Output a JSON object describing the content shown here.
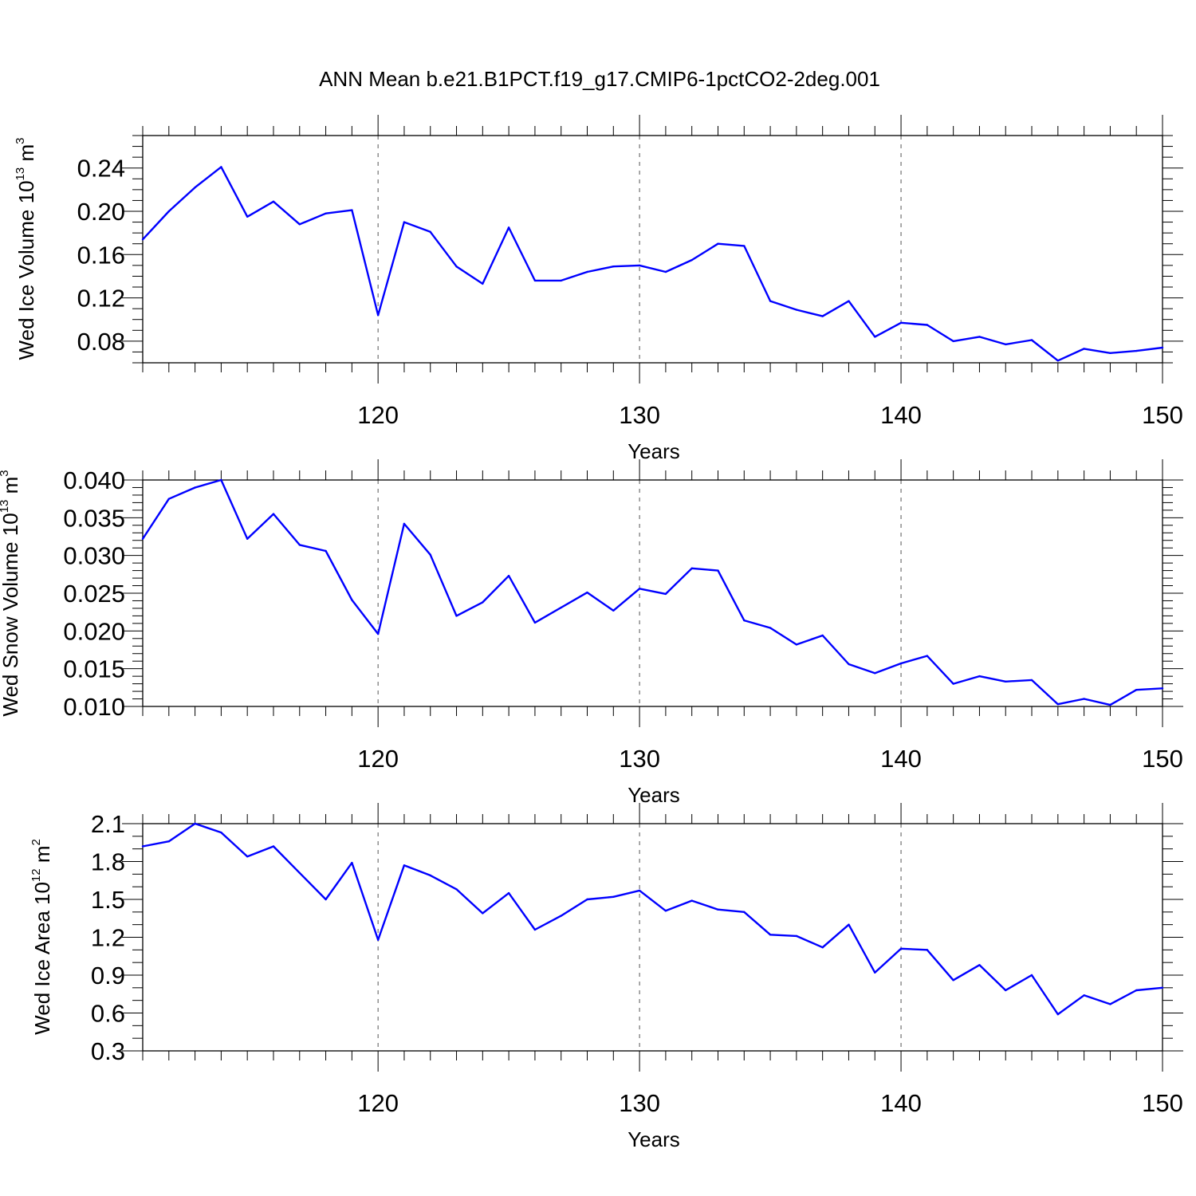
{
  "title": "ANN Mean b.e21.B1PCT.f19_g17.CMIP6-1pctCO2-2deg.001",
  "colors": {
    "series": "#0000ff",
    "axis": "#000000",
    "grid": "#555555"
  },
  "chart_data": [
    {
      "type": "line",
      "xlabel": "Years",
      "ylabel_main": "Wed Ice Volume 10",
      "ylabel_exp": "13",
      "ylabel_unit": " m",
      "ylabel_unit_exp": "3",
      "xlim": [
        111,
        150
      ],
      "ylim": [
        0.06,
        0.27
      ],
      "xticks": [
        120,
        130,
        140,
        150
      ],
      "xtick_labels": [
        "120",
        "130",
        "140",
        "150"
      ],
      "yticks": [
        0.08,
        0.12,
        0.16,
        0.2,
        0.24
      ],
      "ytick_labels": [
        "0.08",
        "0.12",
        "0.16",
        "0.20",
        "0.24"
      ],
      "ytick_minor_step": 0.01,
      "grid": "dashed vertical at major x ticks",
      "x": [
        111,
        112,
        113,
        114,
        115,
        116,
        117,
        118,
        119,
        120,
        121,
        122,
        123,
        124,
        125,
        126,
        127,
        128,
        129,
        130,
        131,
        132,
        133,
        134,
        135,
        136,
        137,
        138,
        139,
        140,
        141,
        142,
        143,
        144,
        145,
        146,
        147,
        148,
        149,
        150
      ],
      "values": [
        0.174,
        0.2,
        0.222,
        0.241,
        0.195,
        0.209,
        0.188,
        0.198,
        0.201,
        0.104,
        0.19,
        0.181,
        0.149,
        0.133,
        0.185,
        0.136,
        0.136,
        0.144,
        0.149,
        0.15,
        0.144,
        0.155,
        0.17,
        0.168,
        0.117,
        0.109,
        0.103,
        0.117,
        0.084,
        0.097,
        0.095,
        0.08,
        0.084,
        0.077,
        0.081,
        0.062,
        0.073,
        0.069,
        0.071,
        0.074
      ]
    },
    {
      "type": "line",
      "xlabel": "Years",
      "ylabel_main": "Wed Snow Volume 10",
      "ylabel_exp": "13",
      "ylabel_unit": " m",
      "ylabel_unit_exp": "3",
      "xlim": [
        111,
        150
      ],
      "ylim": [
        0.01,
        0.04
      ],
      "xticks": [
        120,
        130,
        140,
        150
      ],
      "xtick_labels": [
        "120",
        "130",
        "140",
        "150"
      ],
      "yticks": [
        0.01,
        0.015,
        0.02,
        0.025,
        0.03,
        0.035,
        0.04
      ],
      "ytick_labels": [
        "0.010",
        "0.015",
        "0.020",
        "0.025",
        "0.030",
        "0.035",
        "0.040"
      ],
      "ytick_minor_step": 0.001,
      "grid": "dashed vertical at major x ticks",
      "x": [
        111,
        112,
        113,
        114,
        115,
        116,
        117,
        118,
        119,
        120,
        121,
        122,
        123,
        124,
        125,
        126,
        127,
        128,
        129,
        130,
        131,
        132,
        133,
        134,
        135,
        136,
        137,
        138,
        139,
        140,
        141,
        142,
        143,
        144,
        145,
        146,
        147,
        148,
        149,
        150
      ],
      "values": [
        0.0322,
        0.0375,
        0.039,
        0.04,
        0.0322,
        0.0355,
        0.0314,
        0.0306,
        0.0241,
        0.0196,
        0.0342,
        0.0301,
        0.022,
        0.0238,
        0.0273,
        0.0211,
        0.0231,
        0.0251,
        0.0227,
        0.0256,
        0.0249,
        0.0283,
        0.028,
        0.0214,
        0.0204,
        0.0182,
        0.0194,
        0.0156,
        0.0144,
        0.0157,
        0.0167,
        0.013,
        0.014,
        0.0133,
        0.0135,
        0.0103,
        0.011,
        0.0102,
        0.0122,
        0.0124
      ]
    },
    {
      "type": "line",
      "xlabel": "Years",
      "ylabel_main": "Wed Ice Area 10",
      "ylabel_exp": "12",
      "ylabel_unit": " m",
      "ylabel_unit_exp": "2",
      "xlim": [
        111,
        150
      ],
      "ylim": [
        0.3,
        2.1
      ],
      "xticks": [
        120,
        130,
        140,
        150
      ],
      "xtick_labels": [
        "120",
        "130",
        "140",
        "150"
      ],
      "yticks": [
        0.3,
        0.6,
        0.9,
        1.2,
        1.5,
        1.8,
        2.1
      ],
      "ytick_labels": [
        "0.3",
        "0.6",
        "0.9",
        "1.2",
        "1.5",
        "1.8",
        "2.1"
      ],
      "ytick_minor_step": 0.1,
      "grid": "dashed vertical at major x ticks",
      "x": [
        111,
        112,
        113,
        114,
        115,
        116,
        117,
        118,
        119,
        120,
        121,
        122,
        123,
        124,
        125,
        126,
        127,
        128,
        129,
        130,
        131,
        132,
        133,
        134,
        135,
        136,
        137,
        138,
        139,
        140,
        141,
        142,
        143,
        144,
        145,
        146,
        147,
        148,
        149,
        150
      ],
      "values": [
        1.92,
        1.96,
        2.1,
        2.03,
        1.84,
        1.92,
        1.71,
        1.5,
        1.79,
        1.18,
        1.77,
        1.69,
        1.58,
        1.39,
        1.55,
        1.26,
        1.37,
        1.5,
        1.52,
        1.57,
        1.41,
        1.49,
        1.42,
        1.4,
        1.22,
        1.21,
        1.12,
        1.3,
        0.92,
        1.11,
        1.1,
        0.86,
        0.98,
        0.78,
        0.9,
        0.59,
        0.74,
        0.67,
        0.78,
        0.8
      ]
    }
  ]
}
